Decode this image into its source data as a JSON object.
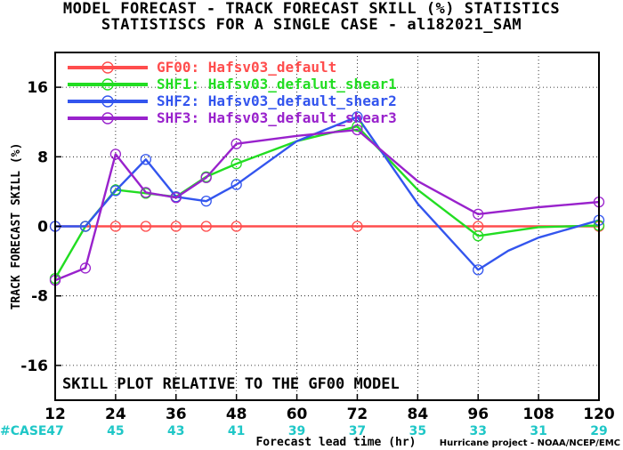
{
  "title_line1": "MODEL FORECAST - TRACK FORECAST SKILL (%) STATISTICS",
  "title_line2": "STATISTISCS FOR A SINGLE CASE - al182021_SAM",
  "annotation": "SKILL PLOT RELATIVE TO THE GF00 MODEL",
  "case_label": "#CASE",
  "credit": "Hurricane project - NOAA/NCEP/EMC",
  "chart_data": {
    "type": "line",
    "xlabel": "Forecast lead time (hr)",
    "ylabel": "TRACK FORECAST SKILL (%)",
    "xlim": [
      12,
      120
    ],
    "ylim": [
      -20,
      20
    ],
    "xticks": [
      12,
      24,
      36,
      48,
      60,
      72,
      84,
      96,
      108,
      120
    ],
    "yticks": [
      -16,
      -8,
      0,
      8,
      16
    ],
    "cases": [
      47,
      45,
      43,
      41,
      39,
      37,
      35,
      33,
      31,
      29
    ],
    "grid": true,
    "legend_position": "top-left",
    "series": [
      {
        "name": "GF00: Hafsv03_default",
        "color": "#ff4d4d",
        "x": [
          12,
          18,
          24,
          30,
          36,
          42,
          48,
          72,
          96,
          120
        ],
        "y": [
          0,
          0,
          0,
          0,
          0,
          0,
          0,
          0,
          0,
          0
        ],
        "marker_x": [
          12,
          18,
          24,
          30,
          36,
          42,
          48,
          72,
          96,
          120
        ]
      },
      {
        "name": "SHF1: Hafsv03_defalut_shear1",
        "color": "#22dd22",
        "x": [
          12,
          18,
          24,
          30,
          36,
          42,
          48,
          60,
          72,
          84,
          96,
          108,
          120
        ],
        "y": [
          -6.0,
          0.0,
          4.2,
          3.8,
          3.4,
          5.7,
          7.2,
          9.8,
          11.5,
          4.2,
          -1.1,
          -0.1,
          0.1
        ],
        "marker_x": [
          12,
          18,
          24,
          30,
          36,
          42,
          48,
          72,
          96,
          120
        ]
      },
      {
        "name": "SHF2: Hafsv03_default_shear2",
        "color": "#3355ee",
        "x": [
          12,
          18,
          24,
          30,
          36,
          42,
          48,
          60,
          72,
          84,
          96,
          102,
          108,
          120
        ],
        "y": [
          0.0,
          0.0,
          4.1,
          7.7,
          3.4,
          2.9,
          4.8,
          9.8,
          12.6,
          2.6,
          -5.0,
          -2.8,
          -1.3,
          0.7
        ],
        "marker_x": [
          12,
          18,
          24,
          30,
          36,
          42,
          48,
          72,
          96,
          120
        ]
      },
      {
        "name": "SHF3: Hafsv03_default_shear3",
        "color": "#9922cc",
        "x": [
          12,
          18,
          24,
          30,
          36,
          42,
          48,
          60,
          72,
          84,
          96,
          108,
          120
        ],
        "y": [
          -6.2,
          -4.8,
          8.3,
          3.9,
          3.3,
          5.6,
          9.5,
          10.4,
          11.1,
          5.2,
          1.4,
          2.2,
          2.8
        ],
        "marker_x": [
          12,
          18,
          24,
          30,
          36,
          42,
          48,
          72,
          96,
          120
        ]
      }
    ]
  }
}
